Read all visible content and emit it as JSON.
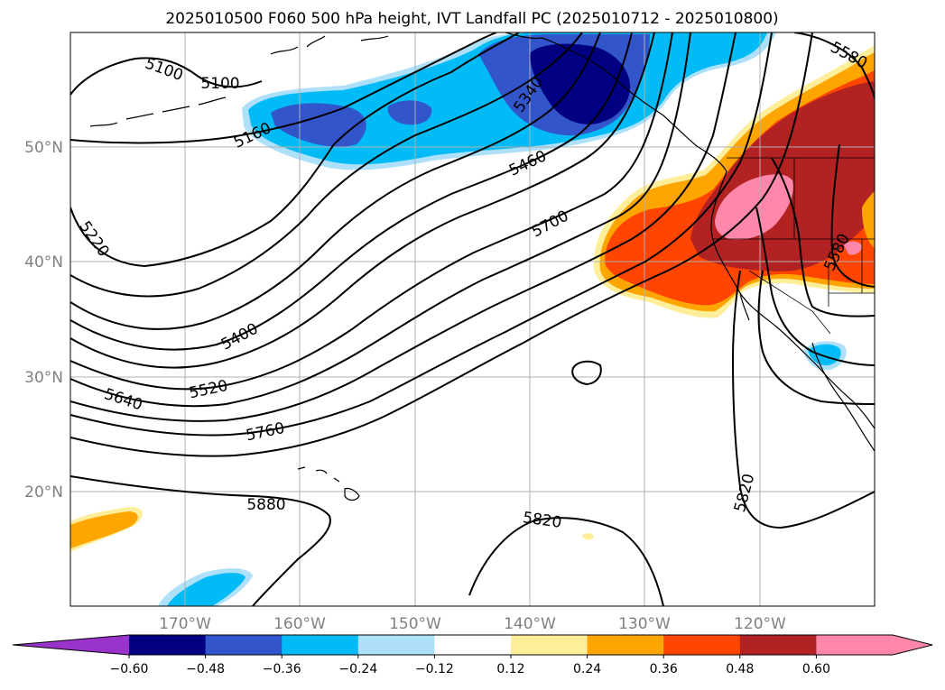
{
  "title": "2025010500 F060 500 hPa height, IVT Landfall PC (2025010712 - 2025010800)",
  "map": {
    "lat_labels": [
      "50°N",
      "40°N",
      "30°N",
      "20°N"
    ],
    "lon_labels": [
      "170°W",
      "160°W",
      "150°W",
      "140°W",
      "130°W",
      "120°W"
    ],
    "contour_labels": [
      "5100",
      "5100",
      "5160",
      "5220",
      "5340",
      "5460",
      "5700",
      "5400",
      "5520",
      "5640",
      "5760",
      "5880",
      "5820",
      "5820",
      "5580",
      "5580"
    ]
  },
  "colorbar": {
    "tick_labels": [
      "−0.60",
      "−0.48",
      "−0.36",
      "−0.24",
      "−0.12",
      "0.12",
      "0.24",
      "0.36",
      "0.48",
      "0.60"
    ],
    "colors": [
      "#9933cc",
      "#000080",
      "#3355cc",
      "#00bbf5",
      "#aee0fa",
      "#ffffff",
      "#ffee99",
      "#ffa500",
      "#ff4500",
      "#b22222",
      "#ff88aa"
    ]
  },
  "colors": {
    "deep_blue": "#000080",
    "mid_blue": "#3355cc",
    "cyan": "#00bbf5",
    "light_blue": "#aee0fa",
    "light_yellow": "#ffee99",
    "orange": "#ffa500",
    "orange_red": "#ff4500",
    "firebrick": "#b22222",
    "pink": "#ff88aa"
  }
}
